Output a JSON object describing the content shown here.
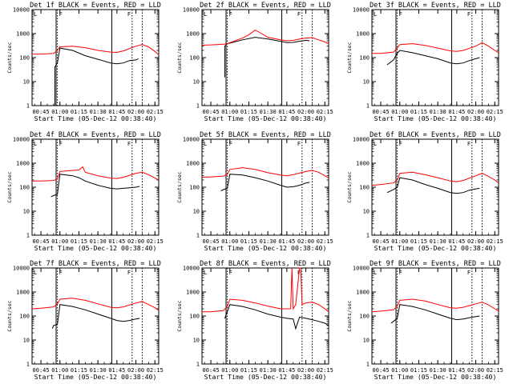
{
  "figure": {
    "background": "#ffffff",
    "series_colors": {
      "events": "#000000",
      "lld": "#ff0000"
    },
    "x_tick_labels": [
      "00:45",
      "01:00",
      "01:15",
      "01:30",
      "01:45",
      "02:00",
      "02:15"
    ],
    "y_tick_labels": [
      "1",
      "10",
      "100",
      "1000",
      "10000"
    ],
    "xlabel": "Start Time (05-Dec-12 00:38:40)",
    "ylabel": "Counts/sec",
    "marker_labels": [
      "F",
      "F",
      "L"
    ]
  },
  "chart_data": [
    {
      "type": "line",
      "title": "Det 1f BLACK = Events, RED = LLD",
      "xlabel": "Start Time (05-Dec-12 00:38:40)",
      "ylabel": "Counts/sec",
      "y_scale": "log",
      "ylim": [
        1,
        10000
      ],
      "xlim": [
        "00:38",
        "02:18"
      ],
      "vlines_solid": [
        "00:57",
        "01:41"
      ],
      "vlines_dotted": [
        "00:58",
        "01:57",
        "02:05"
      ],
      "series": [
        {
          "name": "BLACK = Events",
          "color": "#000000",
          "x": [
            "00:56",
            "00:56",
            "00:58",
            "01:00",
            "01:10",
            "01:20",
            "01:30",
            "01:40",
            "01:45",
            "01:50",
            "01:55",
            "02:00",
            "02:02"
          ],
          "y": [
            1,
            40,
            60,
            250,
            200,
            120,
            85,
            60,
            55,
            60,
            75,
            80,
            90
          ]
        },
        {
          "name": "RED = LLD",
          "color": "#ff0000",
          "x": [
            "00:38",
            "00:45",
            "00:55",
            "00:58",
            "01:00",
            "01:10",
            "01:20",
            "01:30",
            "01:40",
            "01:45",
            "01:50",
            "02:00",
            "02:05",
            "02:10",
            "02:15",
            "02:18"
          ],
          "y": [
            140,
            140,
            150,
            200,
            280,
            300,
            260,
            200,
            170,
            165,
            190,
            300,
            350,
            280,
            180,
            130
          ]
        }
      ]
    },
    {
      "type": "line",
      "title": "Det 2f BLACK = Events, RED = LLD",
      "xlabel": "Start Time (05-Dec-12 00:38:40)",
      "ylabel": "Counts/sec",
      "y_scale": "log",
      "ylim": [
        1,
        10000
      ],
      "xlim": [
        "00:38",
        "02:18"
      ],
      "vlines_solid": [
        "00:57",
        "01:41"
      ],
      "vlines_dotted": [
        "00:58",
        "01:57",
        "02:05"
      ],
      "series": [
        {
          "name": "BLACK = Events",
          "color": "#000000",
          "x": [
            "00:56",
            "00:56",
            "00:58",
            "01:00",
            "01:10",
            "01:20",
            "01:30",
            "01:40",
            "01:45",
            "01:50",
            "01:55",
            "02:00",
            "02:03"
          ],
          "y": [
            15,
            300,
            380,
            400,
            550,
            700,
            600,
            480,
            420,
            430,
            480,
            520,
            500
          ]
        },
        {
          "name": "RED = LLD",
          "color": "#ff0000",
          "x": [
            "00:38",
            "00:45",
            "00:55",
            "00:58",
            "01:00",
            "01:10",
            "01:15",
            "01:20",
            "01:25",
            "01:30",
            "01:40",
            "01:45",
            "01:50",
            "01:55",
            "02:00",
            "02:05",
            "02:10",
            "02:15",
            "02:18"
          ],
          "y": [
            330,
            340,
            360,
            380,
            420,
            650,
            900,
            1400,
            1000,
            700,
            550,
            500,
            520,
            600,
            650,
            680,
            550,
            450,
            380
          ]
        }
      ]
    },
    {
      "type": "line",
      "title": "Det 3f BLACK = Events, RED = LLD",
      "xlabel": "Start Time (05-Dec-12 00:38:40)",
      "ylabel": "Counts/sec",
      "y_scale": "log",
      "ylim": [
        1,
        10000
      ],
      "xlim": [
        "00:38",
        "02:18"
      ],
      "vlines_solid": [
        "00:57",
        "01:41"
      ],
      "vlines_dotted": [
        "00:58",
        "01:57",
        "02:05"
      ],
      "series": [
        {
          "name": "BLACK = Events",
          "color": "#000000",
          "x": [
            "00:50",
            "00:55",
            "00:58",
            "01:00",
            "01:10",
            "01:20",
            "01:30",
            "01:40",
            "01:45",
            "01:50",
            "01:55",
            "02:00",
            "02:03"
          ],
          "y": [
            50,
            80,
            150,
            200,
            160,
            120,
            90,
            60,
            55,
            60,
            75,
            90,
            100
          ]
        },
        {
          "name": "RED = LLD",
          "color": "#ff0000",
          "x": [
            "00:38",
            "00:45",
            "00:55",
            "00:58",
            "01:00",
            "01:10",
            "01:20",
            "01:30",
            "01:40",
            "01:45",
            "01:50",
            "02:00",
            "02:05",
            "02:10",
            "02:15",
            "02:18"
          ],
          "y": [
            150,
            150,
            170,
            250,
            350,
            380,
            320,
            250,
            190,
            180,
            200,
            300,
            420,
            300,
            200,
            160
          ]
        }
      ]
    },
    {
      "type": "line",
      "title": "Det 4f BLACK = Events, RED = LLD",
      "xlabel": "Start Time (05-Dec-12 00:38:40)",
      "ylabel": "Counts/sec",
      "y_scale": "log",
      "ylim": [
        1,
        10000
      ],
      "xlim": [
        "00:38",
        "02:18"
      ],
      "vlines_solid": [
        "00:57",
        "01:41"
      ],
      "vlines_dotted": [
        "00:58",
        "01:57",
        "02:05"
      ],
      "series": [
        {
          "name": "BLACK = Events",
          "color": "#000000",
          "x": [
            "00:53",
            "00:55",
            "00:58",
            "01:00",
            "01:10",
            "01:15",
            "01:20",
            "01:30",
            "01:40",
            "01:45",
            "01:50",
            "01:55",
            "02:00",
            "02:03"
          ],
          "y": [
            40,
            45,
            50,
            350,
            300,
            250,
            180,
            120,
            90,
            85,
            90,
            95,
            100,
            110
          ]
        },
        {
          "name": "RED = LLD",
          "color": "#ff0000",
          "x": [
            "00:38",
            "00:45",
            "00:55",
            "00:58",
            "01:00",
            "01:10",
            "01:15",
            "01:18",
            "01:20",
            "01:30",
            "01:40",
            "01:45",
            "01:50",
            "02:00",
            "02:05",
            "02:10",
            "02:15",
            "02:18"
          ],
          "y": [
            180,
            180,
            190,
            220,
            450,
            500,
            520,
            700,
            420,
            300,
            240,
            230,
            260,
            380,
            420,
            330,
            240,
            200
          ]
        }
      ]
    },
    {
      "type": "line",
      "title": "Det 5f BLACK = Events, RED = LLD",
      "xlabel": "Start Time (05-Dec-12 00:38:40)",
      "ylabel": "Counts/sec",
      "y_scale": "log",
      "ylim": [
        1,
        10000
      ],
      "xlim": [
        "00:38",
        "02:18"
      ],
      "vlines_solid": [
        "00:57",
        "01:41"
      ],
      "vlines_dotted": [
        "00:58",
        "01:57",
        "02:05"
      ],
      "series": [
        {
          "name": "BLACK = Events",
          "color": "#000000",
          "x": [
            "00:53",
            "00:55",
            "00:58",
            "01:00",
            "01:10",
            "01:20",
            "01:30",
            "01:40",
            "01:45",
            "01:50",
            "01:55",
            "02:00",
            "02:03"
          ],
          "y": [
            70,
            80,
            90,
            350,
            320,
            250,
            180,
            120,
            100,
            105,
            120,
            150,
            160
          ]
        },
        {
          "name": "RED = LLD",
          "color": "#ff0000",
          "x": [
            "00:38",
            "00:45",
            "00:55",
            "00:58",
            "01:00",
            "01:10",
            "01:20",
            "01:30",
            "01:40",
            "01:45",
            "01:50",
            "02:00",
            "02:05",
            "02:10",
            "02:15",
            "02:18"
          ],
          "y": [
            260,
            270,
            290,
            350,
            550,
            650,
            550,
            400,
            320,
            300,
            330,
            450,
            500,
            420,
            300,
            240
          ]
        }
      ]
    },
    {
      "type": "line",
      "title": "Det 6f BLACK = Events, RED = LLD",
      "xlabel": "Start Time (05-Dec-12 00:38:40)",
      "ylabel": "Counts/sec",
      "y_scale": "log",
      "ylim": [
        1,
        10000
      ],
      "xlim": [
        "00:38",
        "02:18"
      ],
      "vlines_solid": [
        "00:57",
        "01:41"
      ],
      "vlines_dotted": [
        "00:58",
        "01:57",
        "02:05"
      ],
      "series": [
        {
          "name": "BLACK = Events",
          "color": "#000000",
          "x": [
            "00:50",
            "00:55",
            "00:58",
            "01:00",
            "01:10",
            "01:20",
            "01:30",
            "01:40",
            "01:45",
            "01:50",
            "01:55",
            "02:00",
            "02:03"
          ],
          "y": [
            60,
            80,
            100,
            250,
            200,
            130,
            90,
            60,
            55,
            60,
            75,
            85,
            90
          ]
        },
        {
          "name": "RED = LLD",
          "color": "#ff0000",
          "x": [
            "00:38",
            "00:45",
            "00:55",
            "00:58",
            "01:00",
            "01:10",
            "01:20",
            "01:30",
            "01:40",
            "01:45",
            "01:50",
            "02:00",
            "02:05",
            "02:10",
            "02:15",
            "02:18"
          ],
          "y": [
            120,
            130,
            150,
            200,
            380,
            420,
            330,
            250,
            180,
            170,
            190,
            300,
            380,
            280,
            200,
            150
          ]
        }
      ]
    },
    {
      "type": "line",
      "title": "Det 7f BLACK = Events, RED = LLD",
      "xlabel": "Start Time (05-Dec-12 00:38:40)",
      "ylabel": "Counts/sec",
      "y_scale": "log",
      "ylim": [
        1,
        10000
      ],
      "xlim": [
        "00:38",
        "02:18"
      ],
      "vlines_solid": [
        "00:57",
        "01:41"
      ],
      "vlines_dotted": [
        "00:58",
        "01:57",
        "02:05"
      ],
      "series": [
        {
          "name": "BLACK = Events",
          "color": "#000000",
          "x": [
            "00:54",
            "00:55",
            "00:58",
            "01:00",
            "01:10",
            "01:20",
            "01:30",
            "01:40",
            "01:45",
            "01:50",
            "01:55",
            "02:00",
            "02:03"
          ],
          "y": [
            30,
            40,
            45,
            300,
            250,
            180,
            120,
            80,
            65,
            60,
            65,
            75,
            80
          ]
        },
        {
          "name": "RED = LLD",
          "color": "#ff0000",
          "x": [
            "00:38",
            "00:45",
            "00:55",
            "00:58",
            "01:00",
            "01:10",
            "01:20",
            "01:30",
            "01:40",
            "01:45",
            "01:50",
            "02:00",
            "02:05",
            "02:10",
            "02:15",
            "02:18"
          ],
          "y": [
            200,
            210,
            240,
            320,
            500,
            550,
            450,
            320,
            230,
            220,
            240,
            350,
            400,
            300,
            220,
            170
          ]
        }
      ]
    },
    {
      "type": "line",
      "title": "Det 8f BLACK = Events, RED = LLD",
      "xlabel": "Start Time (05-Dec-12 00:38:40)",
      "ylabel": "Counts/sec",
      "y_scale": "log",
      "ylim": [
        1,
        10000
      ],
      "xlim": [
        "00:38",
        "02:18"
      ],
      "vlines_solid": [
        "00:57",
        "01:41"
      ],
      "vlines_dotted": [
        "00:58",
        "01:57",
        "02:05"
      ],
      "series": [
        {
          "name": "BLACK = Events",
          "color": "#000000",
          "x": [
            "00:56",
            "00:58",
            "01:00",
            "01:10",
            "01:20",
            "01:30",
            "01:40",
            "01:45",
            "01:50",
            "01:52",
            "01:55",
            "02:00",
            "02:05",
            "02:10",
            "02:15",
            "02:18"
          ],
          "y": [
            80,
            150,
            300,
            250,
            180,
            120,
            90,
            80,
            75,
            30,
            90,
            80,
            70,
            60,
            50,
            40
          ]
        },
        {
          "name": "RED = LLD",
          "color": "#ff0000",
          "x": [
            "00:38",
            "00:45",
            "00:55",
            "00:58",
            "01:00",
            "01:10",
            "01:20",
            "01:30",
            "01:40",
            "01:45",
            "01:48",
            "01:49",
            "01:50",
            "01:52",
            "01:55",
            "01:56",
            "01:57",
            "02:00",
            "02:05",
            "02:10",
            "02:15",
            "02:18"
          ],
          "y": [
            150,
            150,
            170,
            250,
            500,
            450,
            350,
            260,
            200,
            200,
            200,
            10000,
            200,
            300,
            10000,
            10000,
            300,
            350,
            380,
            300,
            200,
            150
          ]
        }
      ]
    },
    {
      "type": "line",
      "title": "Det 9f BLACK = Events, RED = LLD",
      "xlabel": "Start Time (05-Dec-12 00:38:40)",
      "ylabel": "Counts/sec",
      "y_scale": "log",
      "ylim": [
        1,
        10000
      ],
      "xlim": [
        "00:38",
        "02:18"
      ],
      "vlines_solid": [
        "00:57",
        "01:41"
      ],
      "vlines_dotted": [
        "00:58",
        "01:57",
        "02:05"
      ],
      "series": [
        {
          "name": "BLACK = Events",
          "color": "#000000",
          "x": [
            "00:53",
            "00:55",
            "00:58",
            "01:00",
            "01:10",
            "01:20",
            "01:30",
            "01:40",
            "01:45",
            "01:50",
            "01:55",
            "02:00",
            "02:03"
          ],
          "y": [
            50,
            60,
            80,
            300,
            250,
            180,
            120,
            80,
            70,
            75,
            85,
            95,
            100
          ]
        },
        {
          "name": "RED = LLD",
          "color": "#ff0000",
          "x": [
            "00:38",
            "00:45",
            "00:55",
            "00:58",
            "01:00",
            "01:10",
            "01:20",
            "01:30",
            "01:40",
            "01:45",
            "01:50",
            "02:00",
            "02:05",
            "02:10",
            "02:15",
            "02:18"
          ],
          "y": [
            150,
            160,
            180,
            260,
            450,
            500,
            420,
            300,
            220,
            210,
            230,
            320,
            380,
            290,
            200,
            160
          ]
        }
      ]
    }
  ]
}
